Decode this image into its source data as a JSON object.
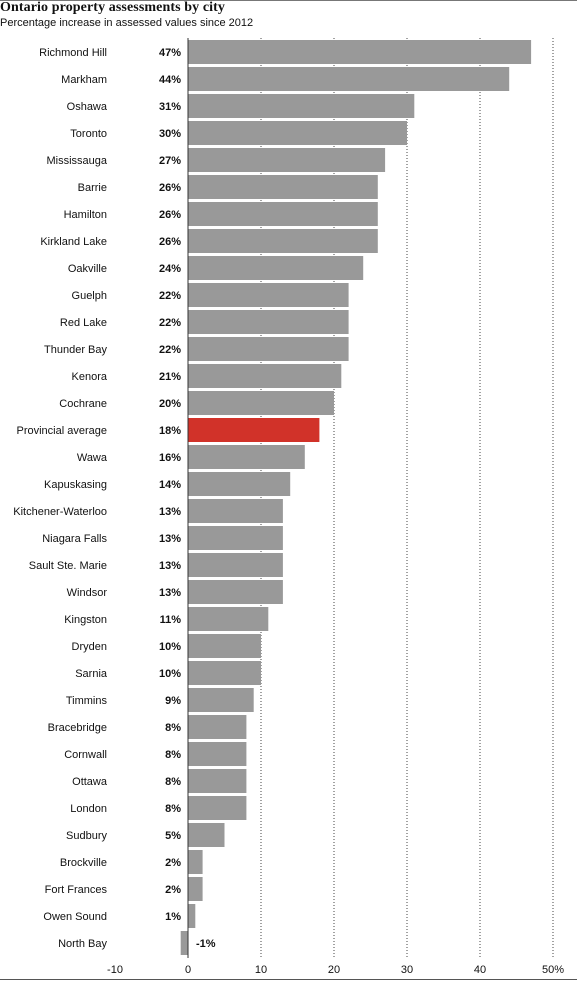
{
  "title": "Ontario property assessments by city",
  "subtitle": "Percentage increase in assessed values since 2012",
  "colors": {
    "bar": "#999999",
    "highlight": "#d13229",
    "grid": "#444444",
    "text": "#111111"
  },
  "chart_data": {
    "type": "bar",
    "orientation": "horizontal",
    "title": "Ontario property assessments by city",
    "subtitle": "Percentage increase in assessed values since 2012",
    "xlim": [
      -10,
      50
    ],
    "xticks": [
      -10,
      0,
      10,
      20,
      30,
      40,
      50
    ],
    "xtick_labels": [
      "-10",
      "0",
      "10",
      "20",
      "30",
      "40",
      "50%"
    ],
    "grid": "vertical dotted",
    "highlight": "Provincial average",
    "categories": [
      "Richmond Hill",
      "Markham",
      "Oshawa",
      "Toronto",
      "Mississauga",
      "Barrie",
      "Hamilton",
      "Kirkland Lake",
      "Oakville",
      "Guelph",
      "Red Lake",
      "Thunder Bay",
      "Kenora",
      "Cochrane",
      "Provincial average",
      "Wawa",
      "Kapuskasing",
      "Kitchener-Waterloo",
      "Niagara Falls",
      "Sault Ste. Marie",
      "Windsor",
      "Kingston",
      "Dryden",
      "Sarnia",
      "Timmins",
      "Bracebridge",
      "Cornwall",
      "Ottawa",
      "London",
      "Sudbury",
      "Brockville",
      "Fort Frances",
      "Owen Sound",
      "North Bay"
    ],
    "values": [
      47,
      44,
      31,
      30,
      27,
      26,
      26,
      26,
      24,
      22,
      22,
      22,
      21,
      20,
      18,
      16,
      14,
      13,
      13,
      13,
      13,
      11,
      10,
      10,
      9,
      8,
      8,
      8,
      8,
      5,
      2,
      2,
      1,
      -1
    ],
    "value_labels": [
      "47%",
      "44%",
      "31%",
      "30%",
      "27%",
      "26%",
      "26%",
      "26%",
      "24%",
      "22%",
      "22%",
      "22%",
      "21%",
      "20%",
      "18%",
      "16%",
      "14%",
      "13%",
      "13%",
      "13%",
      "13%",
      "11%",
      "10%",
      "10%",
      "9%",
      "8%",
      "8%",
      "8%",
      "8%",
      "5%",
      "2%",
      "2%",
      "1%",
      "-1%"
    ]
  }
}
